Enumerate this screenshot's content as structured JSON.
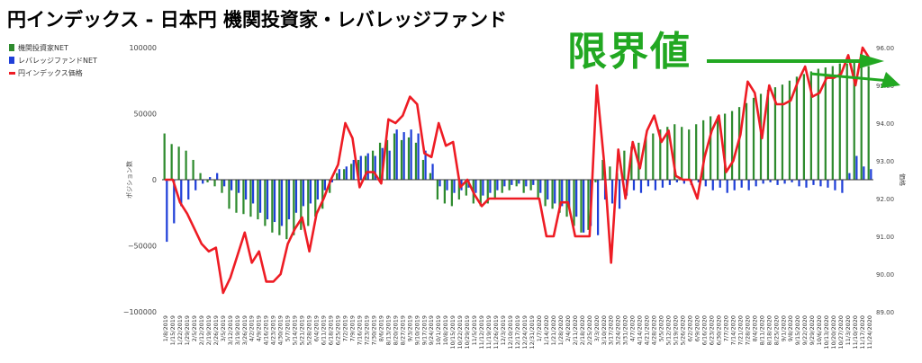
{
  "title": "円インデックス - 日本円 機関投資家・レバレッジファンド",
  "annotation": "限界値",
  "colors": {
    "institutional": "#2e8b2e",
    "leveraged": "#1f3fd8",
    "index": "#ee1c24",
    "annotation": "#22a822"
  },
  "chart_data": {
    "type": "bar",
    "legend_position": "top-left",
    "ylabel": "ポジション数",
    "ylabel_right": "価格",
    "ylim": [
      -100000,
      100000
    ],
    "ylim_right": [
      89.0,
      96.0
    ],
    "y_ticks": [
      "100000",
      "50000",
      "0",
      "−50000",
      "−100000"
    ],
    "y_right_ticks": [
      "96.00",
      "95.00",
      "94.00",
      "93.00",
      "92.00",
      "91.00",
      "90.00",
      "89.00"
    ],
    "x_ticks": [
      "1/8/2019",
      "1/15/2019",
      "1/22/2019",
      "1/29/2019",
      "2/5/2019",
      "2/12/2019",
      "2/19/2019",
      "2/26/2019",
      "3/5/2019",
      "3/12/2019",
      "3/19/2019",
      "3/26/2019",
      "4/2/2019",
      "4/9/2019",
      "4/16/2019",
      "4/23/2019",
      "4/30/2019",
      "5/7/2019",
      "5/14/2019",
      "5/21/2019",
      "5/28/2019",
      "6/4/2019",
      "6/11/2019",
      "6/18/2019",
      "6/25/2019",
      "7/2/2019",
      "7/9/2019",
      "7/16/2019",
      "7/23/2019",
      "7/30/2019",
      "8/6/2019",
      "8/13/2019",
      "8/20/2019",
      "8/27/2019",
      "9/3/2019",
      "9/10/2019",
      "9/17/2019",
      "9/24/2019",
      "10/1/2019",
      "10/8/2019",
      "10/15/2019",
      "10/22/2019",
      "10/29/2019",
      "11/5/2019",
      "11/12/2019",
      "11/19/2019",
      "11/26/2019",
      "12/3/2019",
      "12/10/2019",
      "12/17/2019",
      "12/24/2019",
      "12/31/2019",
      "1/7/2020",
      "1/14/2020",
      "1/21/2020",
      "1/28/2020",
      "2/4/2020",
      "2/11/2020",
      "2/18/2020",
      "2/25/2020",
      "3/3/2020",
      "3/10/2020",
      "3/17/2020",
      "3/24/2020",
      "3/31/2020",
      "4/7/2020",
      "4/14/2020",
      "4/21/2020",
      "4/28/2020",
      "5/5/2020",
      "5/12/2020",
      "5/19/2020",
      "5/26/2020",
      "6/2/2020",
      "6/9/2020",
      "6/16/2020",
      "6/23/2020",
      "6/30/2020",
      "7/7/2020",
      "7/14/2020",
      "7/21/2020",
      "7/28/2020",
      "8/4/2020",
      "8/11/2020",
      "8/18/2020",
      "8/25/2020",
      "9/1/2020",
      "9/8/2020",
      "9/15/2020",
      "9/22/2020",
      "9/29/2020",
      "10/6/2020",
      "10/13/2020",
      "10/20/2020",
      "10/27/2020",
      "11/3/2020",
      "11/10/2020",
      "11/17/2020",
      "11/24/2020"
    ],
    "series": [
      {
        "name": "機関投資家NET",
        "type": "bar",
        "values": [
          35000,
          27000,
          25000,
          22000,
          15000,
          5000,
          -2000,
          -5000,
          -10000,
          -22000,
          -25000,
          -26000,
          -28000,
          -30000,
          -35000,
          -40000,
          -42000,
          -45000,
          -42000,
          -38000,
          -35000,
          -28000,
          -22000,
          -10000,
          5000,
          8000,
          12000,
          15000,
          18000,
          22000,
          28000,
          30000,
          35000,
          30000,
          32000,
          28000,
          15000,
          5000,
          -15000,
          -18000,
          -20000,
          -15000,
          -12000,
          -18000,
          -20000,
          -18000,
          -15000,
          -10000,
          -8000,
          -5000,
          -10000,
          -8000,
          -15000,
          -20000,
          -22000,
          -25000,
          -28000,
          -35000,
          -40000,
          -38000,
          -2000,
          15000,
          10000,
          5000,
          22000,
          25000,
          28000,
          32000,
          35000,
          38000,
          40000,
          42000,
          40000,
          38000,
          42000,
          45000,
          48000,
          48000,
          50000,
          52000,
          55000,
          58000,
          62000,
          65000,
          68000,
          70000,
          72000,
          75000,
          78000,
          80000,
          82000,
          84000,
          85000,
          86000,
          88000,
          88000,
          90000,
          88000,
          86000
        ]
      },
      {
        "name": "レバレッジファンドNET",
        "type": "bar",
        "values": [
          -47000,
          -33000,
          -20000,
          -15000,
          -8000,
          -3000,
          2000,
          5000,
          -5000,
          -8000,
          -10000,
          -15000,
          -18000,
          -25000,
          -30000,
          -32000,
          -35000,
          -30000,
          -25000,
          -20000,
          -18000,
          -15000,
          -8000,
          -2000,
          8000,
          10000,
          15000,
          18000,
          20000,
          18000,
          24000,
          22000,
          38000,
          36000,
          38000,
          35000,
          22000,
          12000,
          -5000,
          -8000,
          -10000,
          -8000,
          -6000,
          -10000,
          -12000,
          -10000,
          -8000,
          -5000,
          -4000,
          -3000,
          -5000,
          -4000,
          -10000,
          -15000,
          -18000,
          -20000,
          -22000,
          -28000,
          -40000,
          -35000,
          -42000,
          -15000,
          -18000,
          -22000,
          -12000,
          -8000,
          -10000,
          -5000,
          -8000,
          -6000,
          -4000,
          -2000,
          -3000,
          -4000,
          -2000,
          -5000,
          -8000,
          -6000,
          -10000,
          -8000,
          -6000,
          -8000,
          -5000,
          -3000,
          -2000,
          -4000,
          -3000,
          -2000,
          -5000,
          -6000,
          -4000,
          -5000,
          -6000,
          -8000,
          -10000,
          5000,
          18000,
          10000,
          8000
        ]
      },
      {
        "name": "円インデックス価格",
        "type": "line",
        "values": [
          92.5,
          92.5,
          91.9,
          91.6,
          91.2,
          90.8,
          90.6,
          90.7,
          89.5,
          89.9,
          90.5,
          91.1,
          90.3,
          90.6,
          89.8,
          89.8,
          90.0,
          90.8,
          91.2,
          91.5,
          90.6,
          91.6,
          92.0,
          92.5,
          92.9,
          94.0,
          93.6,
          92.3,
          92.7,
          92.7,
          92.4,
          94.1,
          94.0,
          94.2,
          94.7,
          94.5,
          93.2,
          93.1,
          94.0,
          93.4,
          93.5,
          92.3,
          92.5,
          92.1,
          91.8,
          92.0,
          92.0,
          92.0,
          92.0,
          92.0,
          92.0,
          92.0,
          92.0,
          91.0,
          91.0,
          91.9,
          91.9,
          91.0,
          91.0,
          91.0,
          95.0,
          93.0,
          90.3,
          93.3,
          92.0,
          93.5,
          92.8,
          93.8,
          94.2,
          93.5,
          93.8,
          92.6,
          92.5,
          92.5,
          92.0,
          93.1,
          93.8,
          94.2,
          92.7,
          93.0,
          93.7,
          95.1,
          94.8,
          93.6,
          95.0,
          94.5,
          94.5,
          94.6,
          95.1,
          95.5,
          94.7,
          94.8,
          95.2,
          95.2,
          95.3,
          95.8,
          95.0,
          96.0,
          95.7
        ]
      }
    ]
  }
}
